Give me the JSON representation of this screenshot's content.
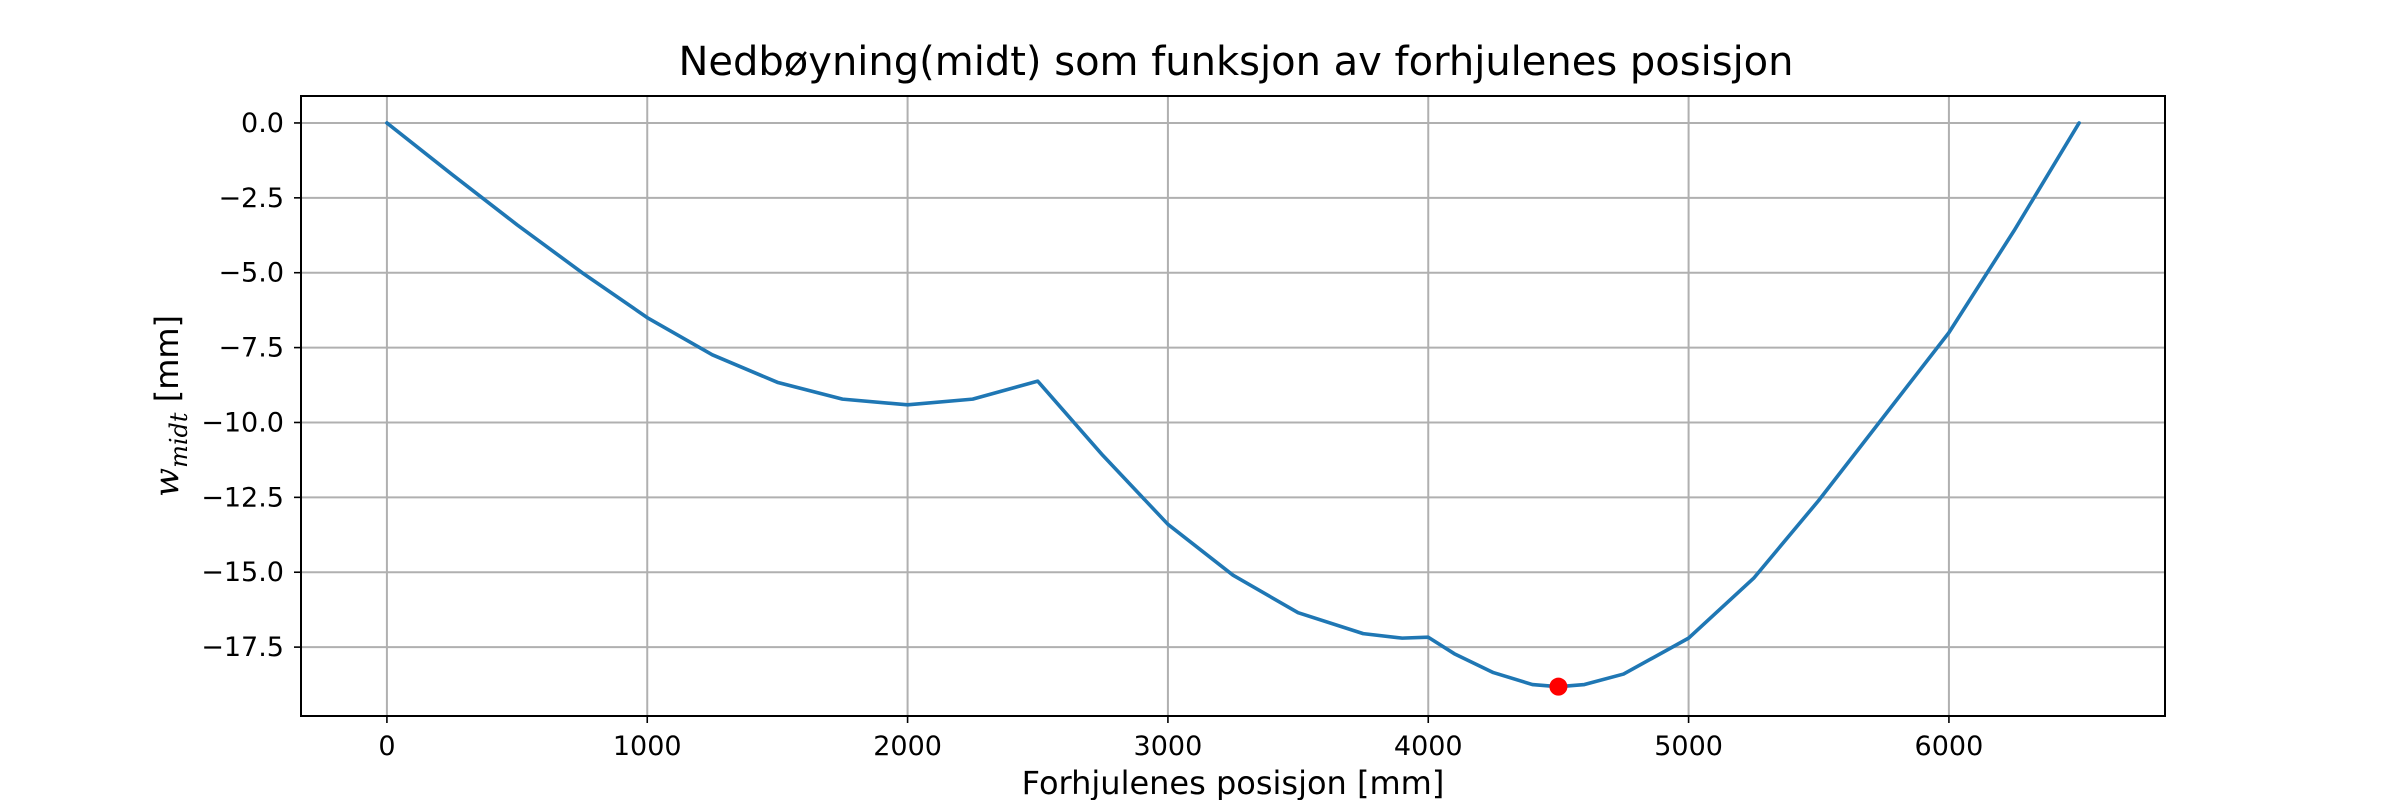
{
  "chart_data": {
    "type": "line",
    "title": "Nedbøyning(midt) som funksjon av forhjulenes posisjon",
    "xlabel": "Forhjulenes posisjon [mm]",
    "ylabel": {
      "base": "w",
      "subscript": "midt",
      "unit": " [mm]"
    },
    "xlim": [
      -330,
      6830
    ],
    "ylim": [
      -19.8,
      0.9
    ],
    "xticks": [
      0,
      1000,
      2000,
      3000,
      4000,
      5000,
      6000
    ],
    "yticks": [
      0.0,
      -2.5,
      -5.0,
      -7.5,
      -10.0,
      -12.5,
      -15.0,
      -17.5
    ],
    "ytick_labels": [
      "0.0",
      "−2.5",
      "−5.0",
      "−7.5",
      "−10.0",
      "−12.5",
      "−15.0",
      "−17.5"
    ],
    "grid": true,
    "series": [
      {
        "color": "#1f77b4",
        "x": [
          0,
          250,
          500,
          750,
          1000,
          1250,
          1500,
          1750,
          2000,
          2250,
          2500,
          2750,
          3000,
          3250,
          3500,
          3750,
          3900,
          4000,
          4100,
          4250,
          4400,
          4500,
          4600,
          4750,
          5000,
          5250,
          5500,
          5750,
          6000,
          6250,
          6500
        ],
        "y": [
          0.0,
          -1.72,
          -3.4,
          -5.0,
          -6.5,
          -7.74,
          -8.66,
          -9.22,
          -9.41,
          -9.22,
          -8.62,
          -11.1,
          -13.4,
          -15.1,
          -16.35,
          -17.05,
          -17.2,
          -17.17,
          -17.72,
          -18.35,
          -18.75,
          -18.82,
          -18.75,
          -18.4,
          -17.2,
          -15.2,
          -12.6,
          -9.8,
          -7.0,
          -3.6,
          0.0
        ]
      }
    ],
    "highlight": {
      "x": 4500,
      "y": -18.82,
      "color": "#ff0000"
    }
  }
}
